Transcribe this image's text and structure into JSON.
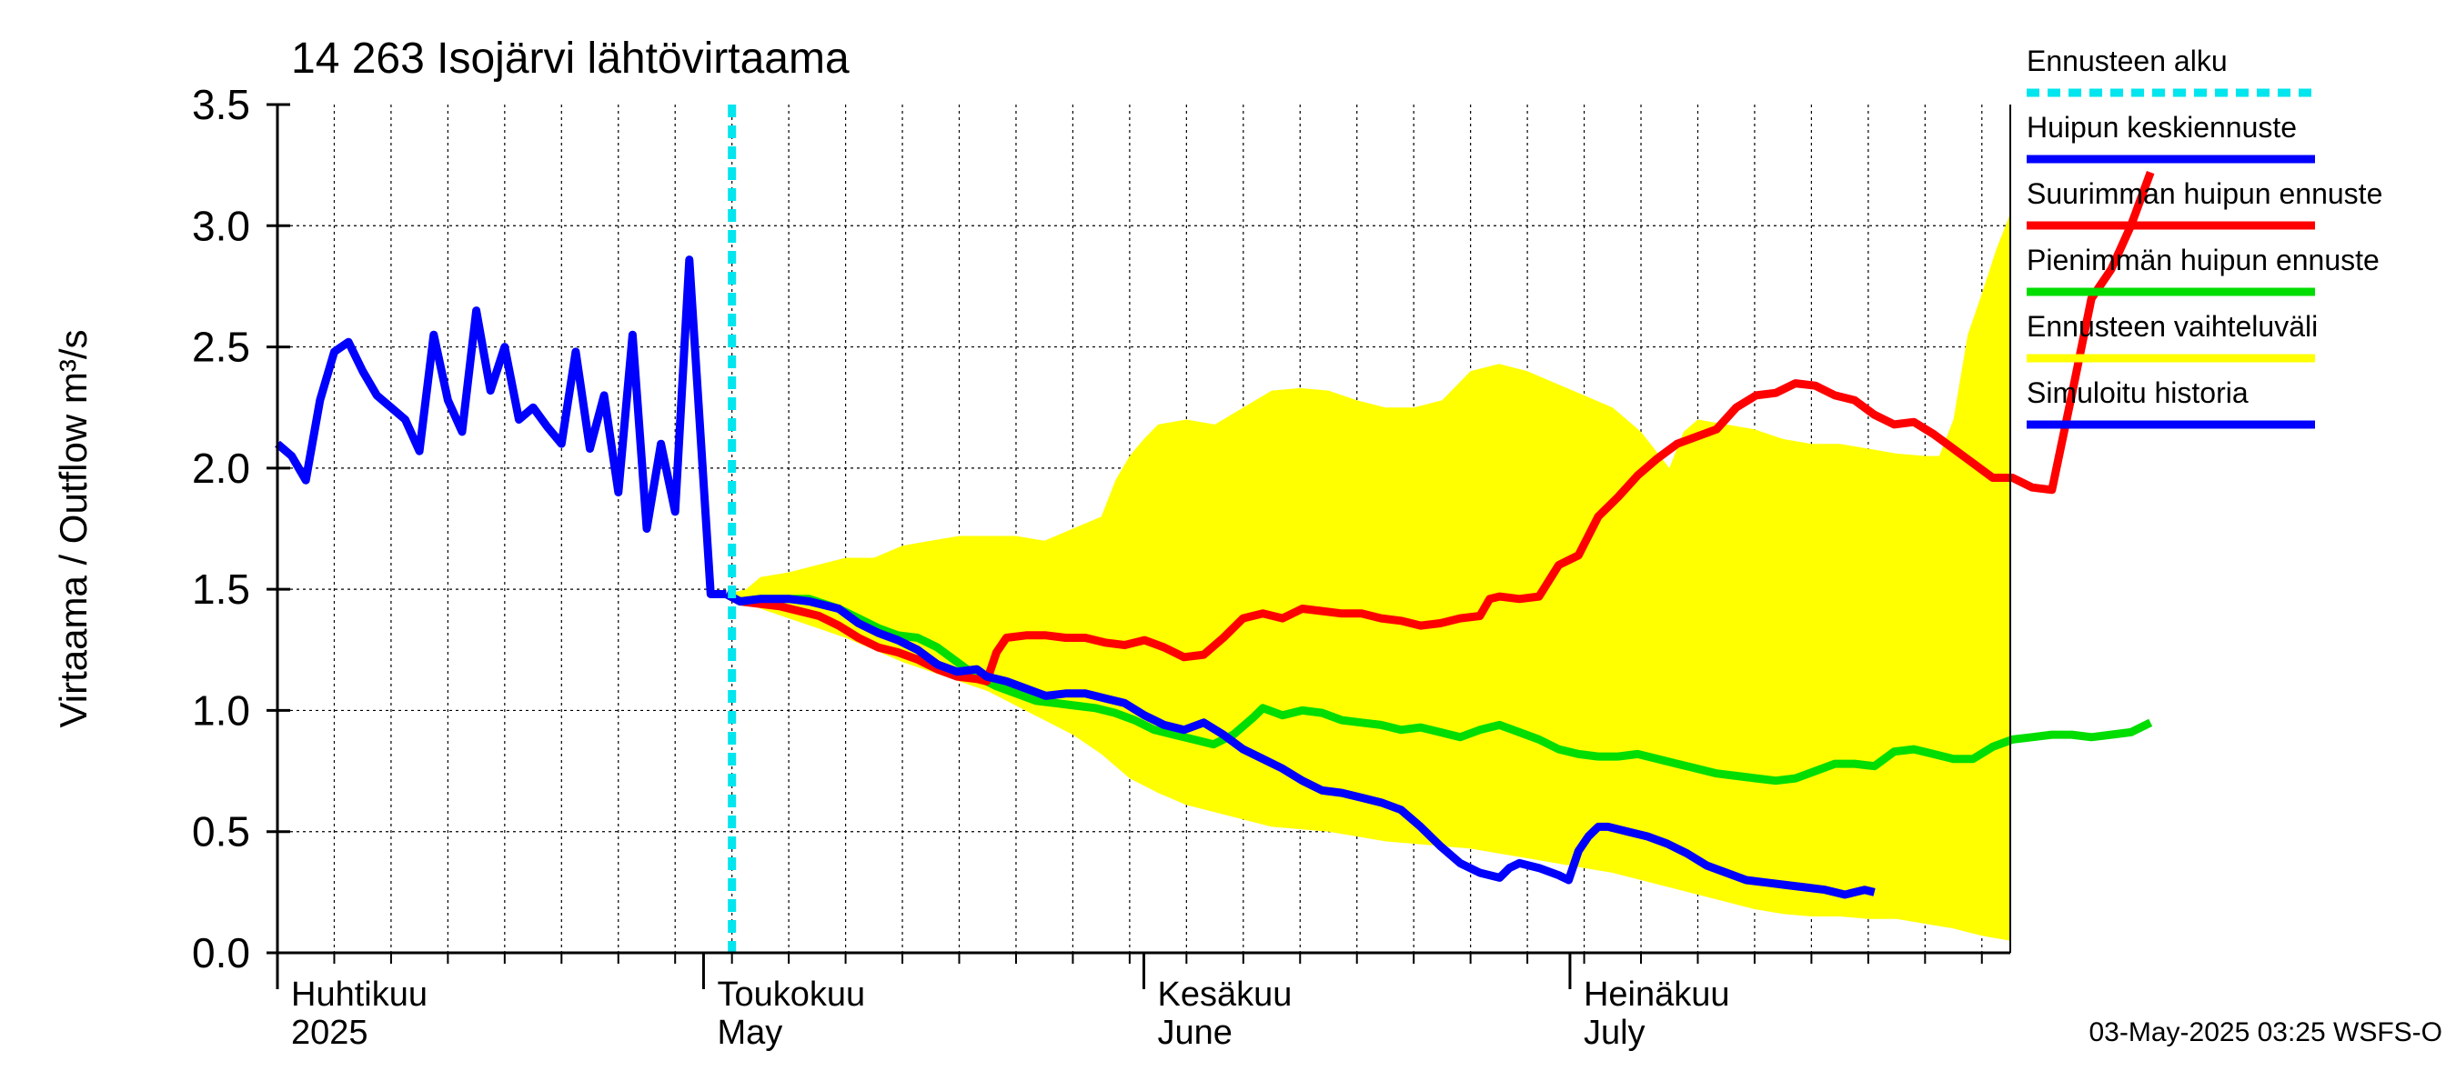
{
  "chart_data": {
    "type": "line",
    "title": "14 263 Isojärvi lähtövirtaama",
    "ylabel": "Virtaama / Outflow    m³/s",
    "ylim": [
      0,
      3.5
    ],
    "yticks": [
      "0.0",
      "0.5",
      "1.0",
      "1.5",
      "2.0",
      "2.5",
      "3.0",
      "3.5"
    ],
    "x_day_range": [
      0,
      122
    ],
    "month_labels": [
      {
        "day": 0,
        "line1": "Huhtikuu",
        "line2": "2025"
      },
      {
        "day": 30,
        "line1": "Toukokuu",
        "line2": "May"
      },
      {
        "day": 61,
        "line1": "Kesäkuu",
        "line2": "June"
      },
      {
        "day": 91,
        "line1": "Heinäkuu",
        "line2": "July"
      }
    ],
    "forecast_start_day": 32,
    "footer": "03-May-2025 03:25 WSFS-O",
    "legend": [
      {
        "label": "Ennusteen alku",
        "color": "#00e5ee",
        "dashed": true
      },
      {
        "label": "Huipun keskiennuste",
        "color": "#0000ff"
      },
      {
        "label": "Suurimman huipun ennuste",
        "color": "#ff0000"
      },
      {
        "label": "Pienimmän huipun ennuste",
        "color": "#00dd00"
      },
      {
        "label": "Ennusteen vaihteluväli",
        "color": "#ffff00"
      },
      {
        "label": "Simuloitu historia",
        "color": "#0000ff"
      }
    ],
    "series": {
      "band_upper": [
        [
          31.6,
          1.48
        ],
        [
          33,
          1.5
        ],
        [
          34,
          1.55
        ],
        [
          36,
          1.57
        ],
        [
          38,
          1.6
        ],
        [
          40,
          1.63
        ],
        [
          42,
          1.63
        ],
        [
          44,
          1.68
        ],
        [
          46,
          1.7
        ],
        [
          48,
          1.72
        ],
        [
          50,
          1.72
        ],
        [
          52,
          1.72
        ],
        [
          54,
          1.7
        ],
        [
          56,
          1.75
        ],
        [
          58,
          1.8
        ],
        [
          59,
          1.95
        ],
        [
          60,
          2.05
        ],
        [
          61,
          2.12
        ],
        [
          62,
          2.18
        ],
        [
          64,
          2.2
        ],
        [
          66,
          2.18
        ],
        [
          68,
          2.25
        ],
        [
          70,
          2.32
        ],
        [
          72,
          2.33
        ],
        [
          74,
          2.32
        ],
        [
          76,
          2.28
        ],
        [
          78,
          2.25
        ],
        [
          80,
          2.25
        ],
        [
          82,
          2.28
        ],
        [
          84,
          2.4
        ],
        [
          86,
          2.43
        ],
        [
          88,
          2.4
        ],
        [
          90,
          2.35
        ],
        [
          92,
          2.3
        ],
        [
          94,
          2.25
        ],
        [
          96,
          2.15
        ],
        [
          98,
          2.0
        ],
        [
          99,
          2.15
        ],
        [
          100,
          2.2
        ],
        [
          102,
          2.18
        ],
        [
          104,
          2.16
        ],
        [
          106,
          2.12
        ],
        [
          108,
          2.1
        ],
        [
          110,
          2.1
        ],
        [
          112,
          2.08
        ],
        [
          114,
          2.06
        ],
        [
          116,
          2.05
        ],
        [
          117,
          2.05
        ],
        [
          118,
          2.2
        ],
        [
          119,
          2.55
        ],
        [
          120,
          2.72
        ],
        [
          121,
          2.9
        ],
        [
          122,
          3.05
        ]
      ],
      "band_lower": [
        [
          31.6,
          1.48
        ],
        [
          34,
          1.42
        ],
        [
          36,
          1.38
        ],
        [
          38,
          1.34
        ],
        [
          40,
          1.3
        ],
        [
          42,
          1.25
        ],
        [
          44,
          1.2
        ],
        [
          46,
          1.16
        ],
        [
          48,
          1.12
        ],
        [
          50,
          1.08
        ],
        [
          52,
          1.02
        ],
        [
          54,
          0.96
        ],
        [
          56,
          0.9
        ],
        [
          58,
          0.82
        ],
        [
          60,
          0.72
        ],
        [
          62,
          0.66
        ],
        [
          64,
          0.61
        ],
        [
          66,
          0.58
        ],
        [
          68,
          0.55
        ],
        [
          70,
          0.52
        ],
        [
          72,
          0.51
        ],
        [
          74,
          0.5
        ],
        [
          76,
          0.48
        ],
        [
          78,
          0.46
        ],
        [
          80,
          0.45
        ],
        [
          82,
          0.44
        ],
        [
          84,
          0.43
        ],
        [
          86,
          0.41
        ],
        [
          88,
          0.39
        ],
        [
          90,
          0.37
        ],
        [
          92,
          0.35
        ],
        [
          94,
          0.33
        ],
        [
          96,
          0.3
        ],
        [
          98,
          0.27
        ],
        [
          100,
          0.24
        ],
        [
          102,
          0.21
        ],
        [
          104,
          0.18
        ],
        [
          106,
          0.16
        ],
        [
          108,
          0.15
        ],
        [
          110,
          0.15
        ],
        [
          112,
          0.14
        ],
        [
          114,
          0.14
        ],
        [
          116,
          0.12
        ],
        [
          118,
          0.1
        ],
        [
          120,
          0.07
        ],
        [
          122,
          0.05
        ]
      ],
      "history": [
        [
          0,
          2.1
        ],
        [
          1,
          2.05
        ],
        [
          2,
          1.95
        ],
        [
          3,
          2.28
        ],
        [
          4,
          2.48
        ],
        [
          5,
          2.52
        ],
        [
          6,
          2.4
        ],
        [
          7,
          2.3
        ],
        [
          8,
          2.25
        ],
        [
          9,
          2.2
        ],
        [
          10,
          2.07
        ],
        [
          11,
          2.55
        ],
        [
          12,
          2.28
        ],
        [
          13,
          2.15
        ],
        [
          14,
          2.65
        ],
        [
          15,
          2.32
        ],
        [
          16,
          2.5
        ],
        [
          17,
          2.2
        ],
        [
          18,
          2.25
        ],
        [
          19,
          2.17
        ],
        [
          20,
          2.1
        ],
        [
          21,
          2.48
        ],
        [
          22,
          2.08
        ],
        [
          23,
          2.3
        ],
        [
          24,
          1.9
        ],
        [
          25,
          2.55
        ],
        [
          26,
          1.75
        ],
        [
          27,
          2.1
        ],
        [
          28,
          1.82
        ],
        [
          29,
          2.86
        ],
        [
          30.5,
          1.48
        ],
        [
          31.6,
          1.48
        ]
      ],
      "mean": [
        [
          31.6,
          1.48
        ],
        [
          33,
          1.45
        ],
        [
          35,
          1.46
        ],
        [
          38,
          1.46
        ],
        [
          40,
          1.45
        ],
        [
          43,
          1.42
        ],
        [
          45,
          1.36
        ],
        [
          47,
          1.32
        ],
        [
          49,
          1.29
        ],
        [
          51,
          1.25
        ],
        [
          53,
          1.19
        ],
        [
          55,
          1.16
        ],
        [
          57,
          1.17
        ],
        [
          58,
          1.14
        ],
        [
          60,
          1.12
        ],
        [
          62,
          1.09
        ],
        [
          64,
          1.06
        ],
        [
          66,
          1.07
        ],
        [
          68,
          1.07
        ],
        [
          70,
          1.05
        ],
        [
          72,
          1.03
        ],
        [
          74,
          0.98
        ],
        [
          76,
          0.94
        ],
        [
          78,
          0.92
        ],
        [
          80,
          0.95
        ],
        [
          82,
          0.9
        ],
        [
          84,
          0.84
        ],
        [
          86,
          0.8
        ],
        [
          88,
          0.76
        ],
        [
          90,
          0.71
        ],
        [
          92,
          0.67
        ],
        [
          94,
          0.66
        ],
        [
          96,
          0.64
        ],
        [
          98,
          0.62
        ],
        [
          100,
          0.59
        ],
        [
          102,
          0.52
        ],
        [
          104,
          0.44
        ],
        [
          106,
          0.37
        ],
        [
          108,
          0.33
        ],
        [
          110,
          0.31
        ],
        [
          111,
          0.35
        ],
        [
          112,
          0.37
        ],
        [
          114,
          0.35
        ],
        [
          116,
          0.32
        ],
        [
          117,
          0.3
        ],
        [
          118,
          0.42
        ],
        [
          119,
          0.48
        ],
        [
          120,
          0.52
        ],
        [
          121,
          0.52
        ],
        [
          123,
          0.5
        ],
        [
          125,
          0.48
        ],
        [
          127,
          0.45
        ],
        [
          129,
          0.41
        ],
        [
          131,
          0.36
        ],
        [
          133,
          0.33
        ],
        [
          135,
          0.3
        ],
        [
          137,
          0.29
        ],
        [
          139,
          0.28
        ],
        [
          141,
          0.27
        ],
        [
          143,
          0.26
        ],
        [
          145,
          0.24
        ],
        [
          146,
          0.25
        ],
        [
          147,
          0.26
        ],
        [
          148,
          0.25
        ]
      ],
      "max": [
        [
          31.6,
          1.48
        ],
        [
          33,
          1.45
        ],
        [
          35,
          1.44
        ],
        [
          37,
          1.43
        ],
        [
          39,
          1.41
        ],
        [
          41,
          1.39
        ],
        [
          43,
          1.35
        ],
        [
          45,
          1.3
        ],
        [
          47,
          1.26
        ],
        [
          49,
          1.24
        ],
        [
          51,
          1.21
        ],
        [
          53,
          1.17
        ],
        [
          55,
          1.14
        ],
        [
          57,
          1.13
        ],
        [
          58,
          1.12
        ],
        [
          59,
          1.24
        ],
        [
          60,
          1.3
        ],
        [
          62,
          1.31
        ],
        [
          64,
          1.31
        ],
        [
          66,
          1.3
        ],
        [
          68,
          1.3
        ],
        [
          70,
          1.28
        ],
        [
          72,
          1.27
        ],
        [
          74,
          1.29
        ],
        [
          76,
          1.26
        ],
        [
          78,
          1.22
        ],
        [
          80,
          1.23
        ],
        [
          82,
          1.3
        ],
        [
          84,
          1.38
        ],
        [
          86,
          1.4
        ],
        [
          88,
          1.38
        ],
        [
          90,
          1.42
        ],
        [
          92,
          1.41
        ],
        [
          94,
          1.4
        ],
        [
          96,
          1.4
        ],
        [
          98,
          1.38
        ],
        [
          100,
          1.37
        ],
        [
          102,
          1.35
        ],
        [
          104,
          1.36
        ],
        [
          106,
          1.38
        ],
        [
          108,
          1.39
        ],
        [
          109,
          1.46
        ],
        [
          110,
          1.47
        ],
        [
          112,
          1.46
        ],
        [
          114,
          1.47
        ],
        [
          116,
          1.6
        ],
        [
          118,
          1.64
        ],
        [
          120,
          1.8
        ],
        [
          122,
          1.88
        ],
        [
          124,
          1.97
        ],
        [
          126,
          2.04
        ],
        [
          128,
          2.1
        ],
        [
          130,
          2.13
        ],
        [
          132,
          2.16
        ],
        [
          134,
          2.25
        ],
        [
          136,
          2.3
        ],
        [
          138,
          2.31
        ],
        [
          140,
          2.35
        ],
        [
          142,
          2.34
        ],
        [
          144,
          2.3
        ],
        [
          146,
          2.28
        ],
        [
          148,
          2.22
        ],
        [
          150,
          2.18
        ],
        [
          152,
          2.19
        ],
        [
          154,
          2.14
        ],
        [
          156,
          2.08
        ],
        [
          158,
          2.02
        ],
        [
          160,
          1.96
        ],
        [
          162,
          1.96
        ],
        [
          164,
          1.92
        ],
        [
          166,
          1.91
        ],
        [
          168,
          2.3
        ],
        [
          170,
          2.7
        ],
        [
          172,
          2.82
        ],
        [
          174,
          3.0
        ],
        [
          176,
          3.22
        ]
      ],
      "min": [
        [
          31.6,
          1.48
        ],
        [
          33,
          1.45
        ],
        [
          35,
          1.46
        ],
        [
          38,
          1.46
        ],
        [
          40,
          1.46
        ],
        [
          43,
          1.42
        ],
        [
          45,
          1.38
        ],
        [
          47,
          1.34
        ],
        [
          49,
          1.31
        ],
        [
          51,
          1.3
        ],
        [
          53,
          1.26
        ],
        [
          55,
          1.2
        ],
        [
          57,
          1.14
        ],
        [
          59,
          1.1
        ],
        [
          61,
          1.07
        ],
        [
          63,
          1.04
        ],
        [
          65,
          1.03
        ],
        [
          67,
          1.02
        ],
        [
          69,
          1.01
        ],
        [
          71,
          0.99
        ],
        [
          73,
          0.96
        ],
        [
          75,
          0.92
        ],
        [
          77,
          0.9
        ],
        [
          79,
          0.88
        ],
        [
          81,
          0.86
        ],
        [
          83,
          0.9
        ],
        [
          85,
          0.97
        ],
        [
          86,
          1.01
        ],
        [
          88,
          0.98
        ],
        [
          90,
          1.0
        ],
        [
          92,
          0.99
        ],
        [
          94,
          0.96
        ],
        [
          96,
          0.95
        ],
        [
          98,
          0.94
        ],
        [
          100,
          0.92
        ],
        [
          102,
          0.93
        ],
        [
          104,
          0.91
        ],
        [
          106,
          0.89
        ],
        [
          108,
          0.92
        ],
        [
          110,
          0.94
        ],
        [
          112,
          0.91
        ],
        [
          114,
          0.88
        ],
        [
          116,
          0.84
        ],
        [
          118,
          0.82
        ],
        [
          120,
          0.81
        ],
        [
          122,
          0.81
        ],
        [
          124,
          0.82
        ],
        [
          126,
          0.8
        ],
        [
          128,
          0.78
        ],
        [
          130,
          0.76
        ],
        [
          132,
          0.74
        ],
        [
          134,
          0.73
        ],
        [
          136,
          0.72
        ],
        [
          138,
          0.71
        ],
        [
          140,
          0.72
        ],
        [
          142,
          0.75
        ],
        [
          144,
          0.78
        ],
        [
          146,
          0.78
        ],
        [
          148,
          0.77
        ],
        [
          150,
          0.83
        ],
        [
          152,
          0.84
        ],
        [
          154,
          0.82
        ],
        [
          156,
          0.8
        ],
        [
          158,
          0.8
        ],
        [
          160,
          0.85
        ],
        [
          162,
          0.88
        ],
        [
          164,
          0.89
        ],
        [
          166,
          0.9
        ],
        [
          168,
          0.9
        ],
        [
          170,
          0.89
        ],
        [
          172,
          0.9
        ],
        [
          174,
          0.91
        ],
        [
          176,
          0.95
        ]
      ]
    }
  }
}
